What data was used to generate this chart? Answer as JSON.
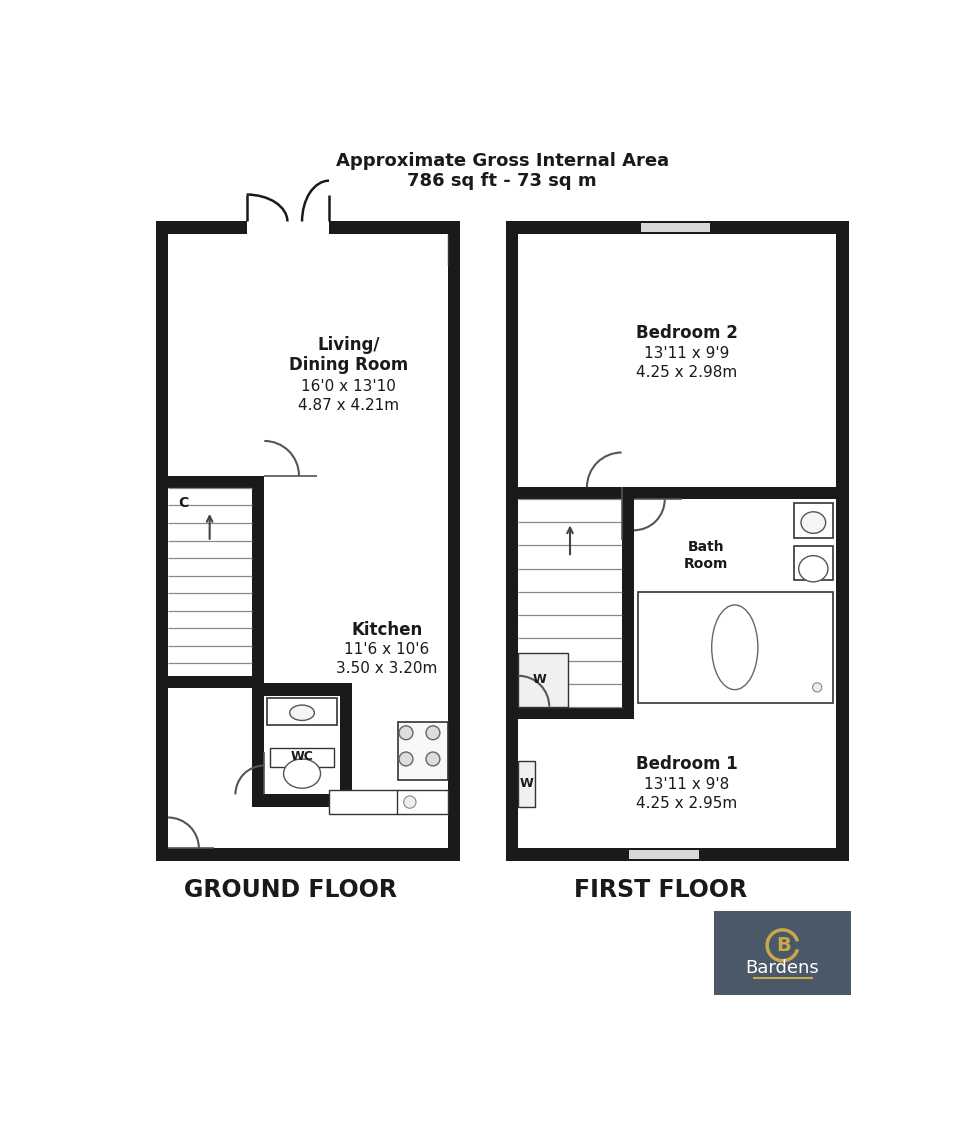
{
  "title_line1": "Approximate Gross Internal Area",
  "title_line2": "786 sq ft - 73 sq m",
  "ground_floor_label": "GROUND FLOOR",
  "first_floor_label": "FIRST FLOOR",
  "wall_color": "#1a1a1a",
  "bg_color": "#ffffff",
  "logo_bg": "#4a5868",
  "logo_gold": "#c8a84b",
  "logo_text": "#ffffff"
}
